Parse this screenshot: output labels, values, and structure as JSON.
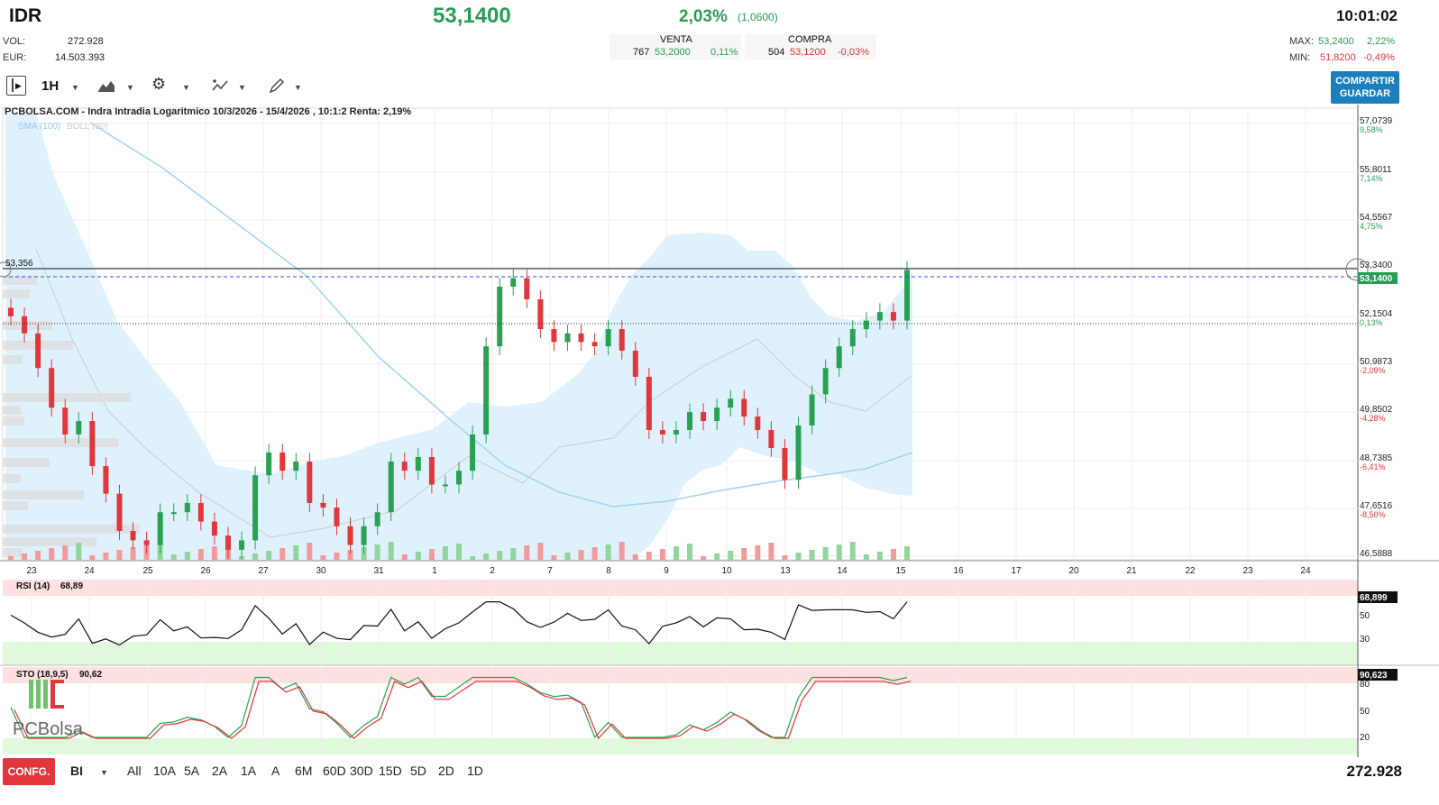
{
  "header": {
    "ticker": "IDR",
    "price": "53,1400",
    "change_pct": "2,03%",
    "change_abs": "(1,0600)",
    "time": "10:01:02",
    "vol_label": "VOL:",
    "vol_value": "272.928",
    "eur_label": "EUR:",
    "eur_value": "14.503.393",
    "venta_label": "VENTA",
    "venta_qty": "767",
    "venta_price": "53,2000",
    "venta_pct": "0,11%",
    "compra_label": "COMPRA",
    "compra_qty": "504",
    "compra_price": "53,1200",
    "compra_pct": "-0,03%",
    "max_label": "MAX:",
    "max_value": "53,2400",
    "max_pct": "2,22%",
    "min_label": "MIN:",
    "min_value": "51,8200",
    "min_pct": "-0,49%"
  },
  "toolbar": {
    "timeframe": "1H",
    "share_label_1": "COMPARTIR",
    "share_label_2": "GUARDAR"
  },
  "bottom": {
    "config_label": "CONFG.",
    "mode": "BI",
    "ranges": [
      "All",
      "10A",
      "5A",
      "2A",
      "1A",
      "A",
      "6M",
      "60D",
      "30D",
      "15D",
      "5D",
      "2D",
      "1D"
    ],
    "volume": "272.928"
  },
  "chart_data": {
    "type": "candlestick",
    "title": "PCBOLSA.COM - Indra Intradia Logaritmico 10/3/2026 - 15/4/2026 , 10:1:2 Renta: 2,19%",
    "legend": [
      "SMA (100)",
      "BOLL (30)"
    ],
    "price_axis": [
      {
        "price": "57,0739",
        "pct": "9,58%"
      },
      {
        "price": "55,8011",
        "pct": "7,14%"
      },
      {
        "price": "54,5567",
        "pct": "4,75%"
      },
      {
        "price": "53,3400",
        "pct": ""
      },
      {
        "price": "52,1504",
        "pct": "0,13%"
      },
      {
        "price": "50,9873",
        "pct": "-2,09%"
      },
      {
        "price": "49,8502",
        "pct": "-4,28%"
      },
      {
        "price": "48,7385",
        "pct": "-6,41%"
      },
      {
        "price": "47,6516",
        "pct": "-8,50%"
      },
      {
        "price": "46,5888",
        "pct": ""
      }
    ],
    "last_price_label": "53,1400",
    "cursor_label": "53,356",
    "x_ticks": [
      "23",
      "24",
      "25",
      "26",
      "27",
      "30",
      "31",
      "1",
      "2",
      "7",
      "8",
      "9",
      "10",
      "13",
      "14",
      "15",
      "16",
      "17",
      "20",
      "21",
      "22",
      "23",
      "24"
    ],
    "closes": [
      52.0,
      51.6,
      50.8,
      49.9,
      49.3,
      49.6,
      48.6,
      48.0,
      47.2,
      47.0,
      46.9,
      47.6,
      47.6,
      47.8,
      47.4,
      47.1,
      46.8,
      47.0,
      48.4,
      48.9,
      48.5,
      48.7,
      47.8,
      47.7,
      47.3,
      46.9,
      47.3,
      47.6,
      48.7,
      48.5,
      48.8,
      48.2,
      48.2,
      48.5,
      49.3,
      51.3,
      52.7,
      52.9,
      52.4,
      51.7,
      51.4,
      51.6,
      51.4,
      51.3,
      51.7,
      51.2,
      50.6,
      49.4,
      49.3,
      49.4,
      49.8,
      49.6,
      49.9,
      50.1,
      49.7,
      49.4,
      49.0,
      48.3,
      49.5,
      50.2,
      50.8,
      51.3,
      51.7,
      51.9,
      52.1,
      51.9,
      53.1
    ],
    "rsi": {
      "label": "RSI (14)",
      "value": "68,89",
      "axis_value": "68,899",
      "levels": [
        "50",
        "30"
      ]
    },
    "sto": {
      "label": "STO (18,9,5)",
      "value": "90,62",
      "axis_value": "90,623",
      "levels": [
        "80",
        "50",
        "20"
      ]
    }
  },
  "watermark": "PCBolsa"
}
